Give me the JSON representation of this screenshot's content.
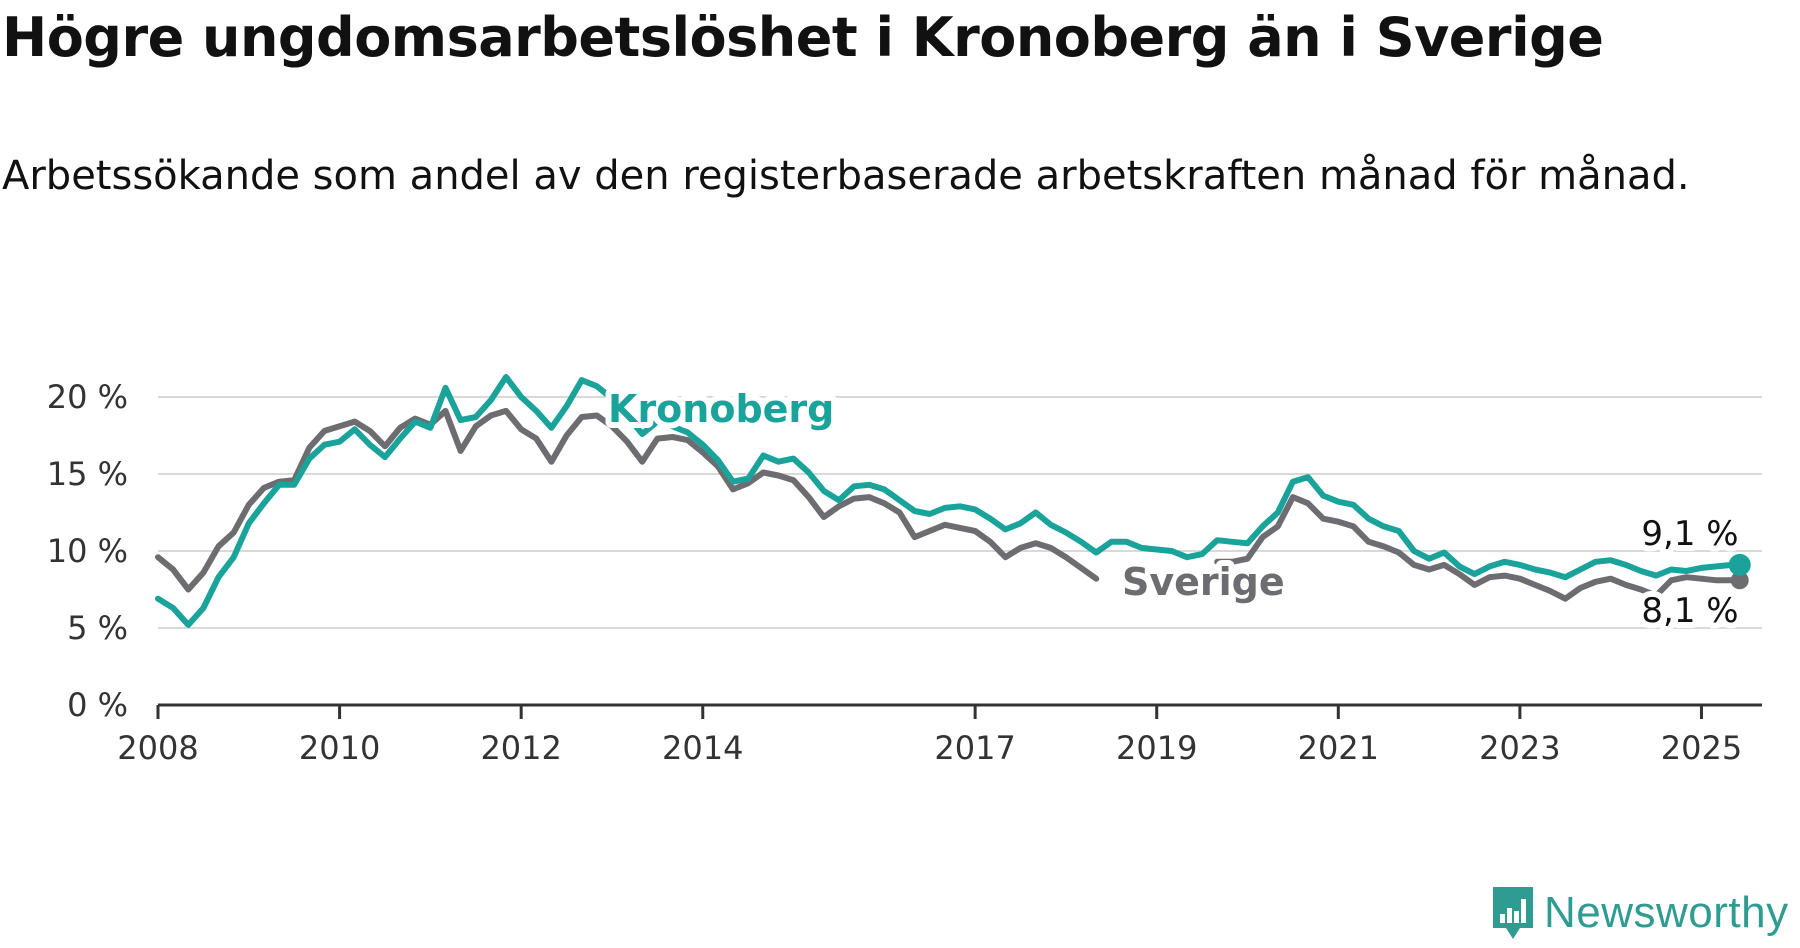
{
  "title": "Högre ungdomsarbetslöshet i Kronoberg än i Sverige",
  "subtitle": "Arbetssökande som andel av den registerbaserade arbetskraften månad för månad.",
  "brand": {
    "name": "Newsworthy",
    "icon": "bar-chart-speech-bubble-icon",
    "color": "#2f9c92"
  },
  "chart_data": {
    "type": "line",
    "title": "Högre ungdomsarbetslöshet i Kronoberg än i Sverige",
    "subtitle": "Arbetssökande som andel av den registerbaserade arbetskraften månad för månad.",
    "xlabel": "",
    "ylabel": "",
    "xlim": [
      "2008-01",
      "2025-09"
    ],
    "ylim": [
      0,
      20
    ],
    "y_ticks": [
      0,
      5,
      10,
      15,
      20
    ],
    "y_tick_labels": [
      "0 %",
      "5 %",
      "10 %",
      "15 %",
      "20 %"
    ],
    "x_ticks": [
      "2008-01",
      "2010-01",
      "2012-01",
      "2014-01",
      "2017-01",
      "2019-01",
      "2021-01",
      "2023-01",
      "2025-01"
    ],
    "x_tick_labels": [
      "2008",
      "2010",
      "2012",
      "2014",
      "2017",
      "2019",
      "2021",
      "2023",
      "2025"
    ],
    "grid": true,
    "legend": "inline labels",
    "series": [
      {
        "name": "Kronoberg",
        "color": "#1aa39a",
        "end_label": "9,1 %",
        "data": [
          [
            "2008-01",
            6.9
          ],
          [
            "2008-03",
            6.3
          ],
          [
            "2008-05",
            5.2
          ],
          [
            "2008-07",
            6.3
          ],
          [
            "2008-09",
            8.3
          ],
          [
            "2008-11",
            9.6
          ],
          [
            "2009-01",
            11.8
          ],
          [
            "2009-03",
            13.1
          ],
          [
            "2009-05",
            14.3
          ],
          [
            "2009-07",
            14.3
          ],
          [
            "2009-09",
            16.0
          ],
          [
            "2009-11",
            16.9
          ],
          [
            "2010-01",
            17.1
          ],
          [
            "2010-03",
            17.9
          ],
          [
            "2010-05",
            16.9
          ],
          [
            "2010-07",
            16.1
          ],
          [
            "2010-09",
            17.3
          ],
          [
            "2010-11",
            18.4
          ],
          [
            "2011-01",
            18.0
          ],
          [
            "2011-03",
            20.6
          ],
          [
            "2011-05",
            18.5
          ],
          [
            "2011-07",
            18.7
          ],
          [
            "2011-09",
            19.8
          ],
          [
            "2011-11",
            21.3
          ],
          [
            "2012-01",
            20.0
          ],
          [
            "2012-03",
            19.1
          ],
          [
            "2012-05",
            18.0
          ],
          [
            "2012-07",
            19.4
          ],
          [
            "2012-09",
            21.1
          ],
          [
            "2012-11",
            20.7
          ],
          [
            "2013-01",
            19.9
          ],
          [
            "2013-03",
            18.8
          ],
          [
            "2013-05",
            17.6
          ],
          [
            "2013-07",
            18.4
          ],
          [
            "2013-09",
            18.1
          ],
          [
            "2013-11",
            17.7
          ],
          [
            "2014-01",
            16.9
          ],
          [
            "2014-03",
            15.9
          ],
          [
            "2014-05",
            14.5
          ],
          [
            "2014-07",
            14.7
          ],
          [
            "2014-09",
            16.2
          ],
          [
            "2014-11",
            15.8
          ],
          [
            "2015-01",
            16.0
          ],
          [
            "2015-03",
            15.1
          ],
          [
            "2015-05",
            13.9
          ],
          [
            "2015-07",
            13.3
          ],
          [
            "2015-09",
            14.2
          ],
          [
            "2015-11",
            14.3
          ],
          [
            "2016-01",
            14.0
          ],
          [
            "2016-03",
            13.3
          ],
          [
            "2016-05",
            12.6
          ],
          [
            "2016-07",
            12.4
          ],
          [
            "2016-09",
            12.8
          ],
          [
            "2016-11",
            12.9
          ],
          [
            "2017-01",
            12.7
          ],
          [
            "2017-03",
            12.1
          ],
          [
            "2017-05",
            11.4
          ],
          [
            "2017-07",
            11.8
          ],
          [
            "2017-09",
            12.5
          ],
          [
            "2017-11",
            11.7
          ],
          [
            "2018-01",
            11.2
          ],
          [
            "2018-03",
            10.6
          ],
          [
            "2018-05",
            9.9
          ],
          [
            "2018-07",
            10.6
          ],
          [
            "2018-09",
            10.6
          ],
          [
            "2018-11",
            10.2
          ],
          [
            "2019-01",
            10.1
          ],
          [
            "2019-03",
            10.0
          ],
          [
            "2019-05",
            9.6
          ],
          [
            "2019-07",
            9.8
          ],
          [
            "2019-09",
            10.7
          ],
          [
            "2019-11",
            10.6
          ],
          [
            "2020-01",
            10.5
          ],
          [
            "2020-03",
            11.6
          ],
          [
            "2020-05",
            12.5
          ],
          [
            "2020-07",
            14.5
          ],
          [
            "2020-09",
            14.8
          ],
          [
            "2020-11",
            13.6
          ],
          [
            "2021-01",
            13.2
          ],
          [
            "2021-03",
            13.0
          ],
          [
            "2021-05",
            12.1
          ],
          [
            "2021-07",
            11.6
          ],
          [
            "2021-09",
            11.3
          ],
          [
            "2021-11",
            10.0
          ],
          [
            "2022-01",
            9.5
          ],
          [
            "2022-03",
            9.9
          ],
          [
            "2022-05",
            9.0
          ],
          [
            "2022-07",
            8.5
          ],
          [
            "2022-09",
            9.0
          ],
          [
            "2022-11",
            9.3
          ],
          [
            "2023-01",
            9.1
          ],
          [
            "2023-03",
            8.8
          ],
          [
            "2023-05",
            8.6
          ],
          [
            "2023-07",
            8.3
          ],
          [
            "2023-09",
            8.8
          ],
          [
            "2023-11",
            9.3
          ],
          [
            "2024-01",
            9.4
          ],
          [
            "2024-03",
            9.1
          ],
          [
            "2024-05",
            8.7
          ],
          [
            "2024-07",
            8.4
          ],
          [
            "2024-09",
            8.8
          ],
          [
            "2024-11",
            8.7
          ],
          [
            "2025-01",
            8.9
          ],
          [
            "2025-03",
            9.0
          ],
          [
            "2025-05",
            9.1
          ]
        ]
      },
      {
        "name": "Sverige",
        "color": "#6d6c70",
        "end_label": "8,1 %",
        "data": [
          [
            "2008-01",
            9.6
          ],
          [
            "2008-03",
            8.8
          ],
          [
            "2008-05",
            7.5
          ],
          [
            "2008-07",
            8.6
          ],
          [
            "2008-09",
            10.3
          ],
          [
            "2008-11",
            11.2
          ],
          [
            "2009-01",
            13.0
          ],
          [
            "2009-03",
            14.1
          ],
          [
            "2009-05",
            14.5
          ],
          [
            "2009-07",
            14.6
          ],
          [
            "2009-09",
            16.7
          ],
          [
            "2009-11",
            17.8
          ],
          [
            "2010-01",
            18.1
          ],
          [
            "2010-03",
            18.4
          ],
          [
            "2010-05",
            17.8
          ],
          [
            "2010-07",
            16.8
          ],
          [
            "2010-09",
            18.0
          ],
          [
            "2010-11",
            18.6
          ],
          [
            "2011-01",
            18.2
          ],
          [
            "2011-03",
            19.1
          ],
          [
            "2011-05",
            16.5
          ],
          [
            "2011-07",
            18.1
          ],
          [
            "2011-09",
            18.8
          ],
          [
            "2011-11",
            19.1
          ],
          [
            "2012-01",
            17.9
          ],
          [
            "2012-03",
            17.3
          ],
          [
            "2012-05",
            15.8
          ],
          [
            "2012-07",
            17.5
          ],
          [
            "2012-09",
            18.7
          ],
          [
            "2012-11",
            18.8
          ],
          [
            "2013-01",
            18.1
          ],
          [
            "2013-03",
            17.1
          ],
          [
            "2013-05",
            15.8
          ],
          [
            "2013-07",
            17.3
          ],
          [
            "2013-09",
            17.4
          ],
          [
            "2013-11",
            17.2
          ],
          [
            "2014-01",
            16.4
          ],
          [
            "2014-03",
            15.5
          ],
          [
            "2014-05",
            14.0
          ],
          [
            "2014-07",
            14.4
          ],
          [
            "2014-09",
            15.1
          ],
          [
            "2014-11",
            14.9
          ],
          [
            "2015-01",
            14.6
          ],
          [
            "2015-03",
            13.5
          ],
          [
            "2015-05",
            12.2
          ],
          [
            "2015-07",
            12.9
          ],
          [
            "2015-09",
            13.4
          ],
          [
            "2015-11",
            13.5
          ],
          [
            "2016-01",
            13.1
          ],
          [
            "2016-03",
            12.5
          ],
          [
            "2016-05",
            10.9
          ],
          [
            "2016-07",
            11.3
          ],
          [
            "2016-09",
            11.7
          ],
          [
            "2016-11",
            11.5
          ],
          [
            "2017-01",
            11.3
          ],
          [
            "2017-03",
            10.6
          ],
          [
            "2017-05",
            9.6
          ],
          [
            "2017-07",
            10.2
          ],
          [
            "2017-09",
            10.5
          ],
          [
            "2017-11",
            10.2
          ],
          [
            "2018-01",
            9.6
          ],
          [
            "2018-03",
            8.9
          ],
          [
            "2018-05",
            8.2
          ]
        ],
        "data_2019_onward": [
          [
            "2019-09",
            9.3
          ],
          [
            "2019-11",
            9.3
          ],
          [
            "2020-01",
            9.5
          ],
          [
            "2020-03",
            10.9
          ],
          [
            "2020-05",
            11.6
          ],
          [
            "2020-07",
            13.5
          ],
          [
            "2020-09",
            13.1
          ],
          [
            "2020-11",
            12.1
          ],
          [
            "2021-01",
            11.9
          ],
          [
            "2021-03",
            11.6
          ],
          [
            "2021-05",
            10.6
          ],
          [
            "2021-07",
            10.3
          ],
          [
            "2021-09",
            9.9
          ],
          [
            "2021-11",
            9.1
          ],
          [
            "2022-01",
            8.8
          ],
          [
            "2022-03",
            9.1
          ],
          [
            "2022-05",
            8.5
          ],
          [
            "2022-07",
            7.8
          ],
          [
            "2022-09",
            8.3
          ],
          [
            "2022-11",
            8.4
          ],
          [
            "2023-01",
            8.2
          ],
          [
            "2023-03",
            7.8
          ],
          [
            "2023-05",
            7.4
          ],
          [
            "2023-07",
            6.9
          ],
          [
            "2023-09",
            7.6
          ],
          [
            "2023-11",
            8.0
          ],
          [
            "2024-01",
            8.2
          ],
          [
            "2024-03",
            7.8
          ],
          [
            "2024-05",
            7.5
          ],
          [
            "2024-07",
            7.1
          ],
          [
            "2024-09",
            8.1
          ],
          [
            "2024-11",
            8.3
          ],
          [
            "2025-01",
            8.2
          ],
          [
            "2025-03",
            8.1
          ],
          [
            "2025-05",
            8.1
          ]
        ]
      }
    ]
  }
}
